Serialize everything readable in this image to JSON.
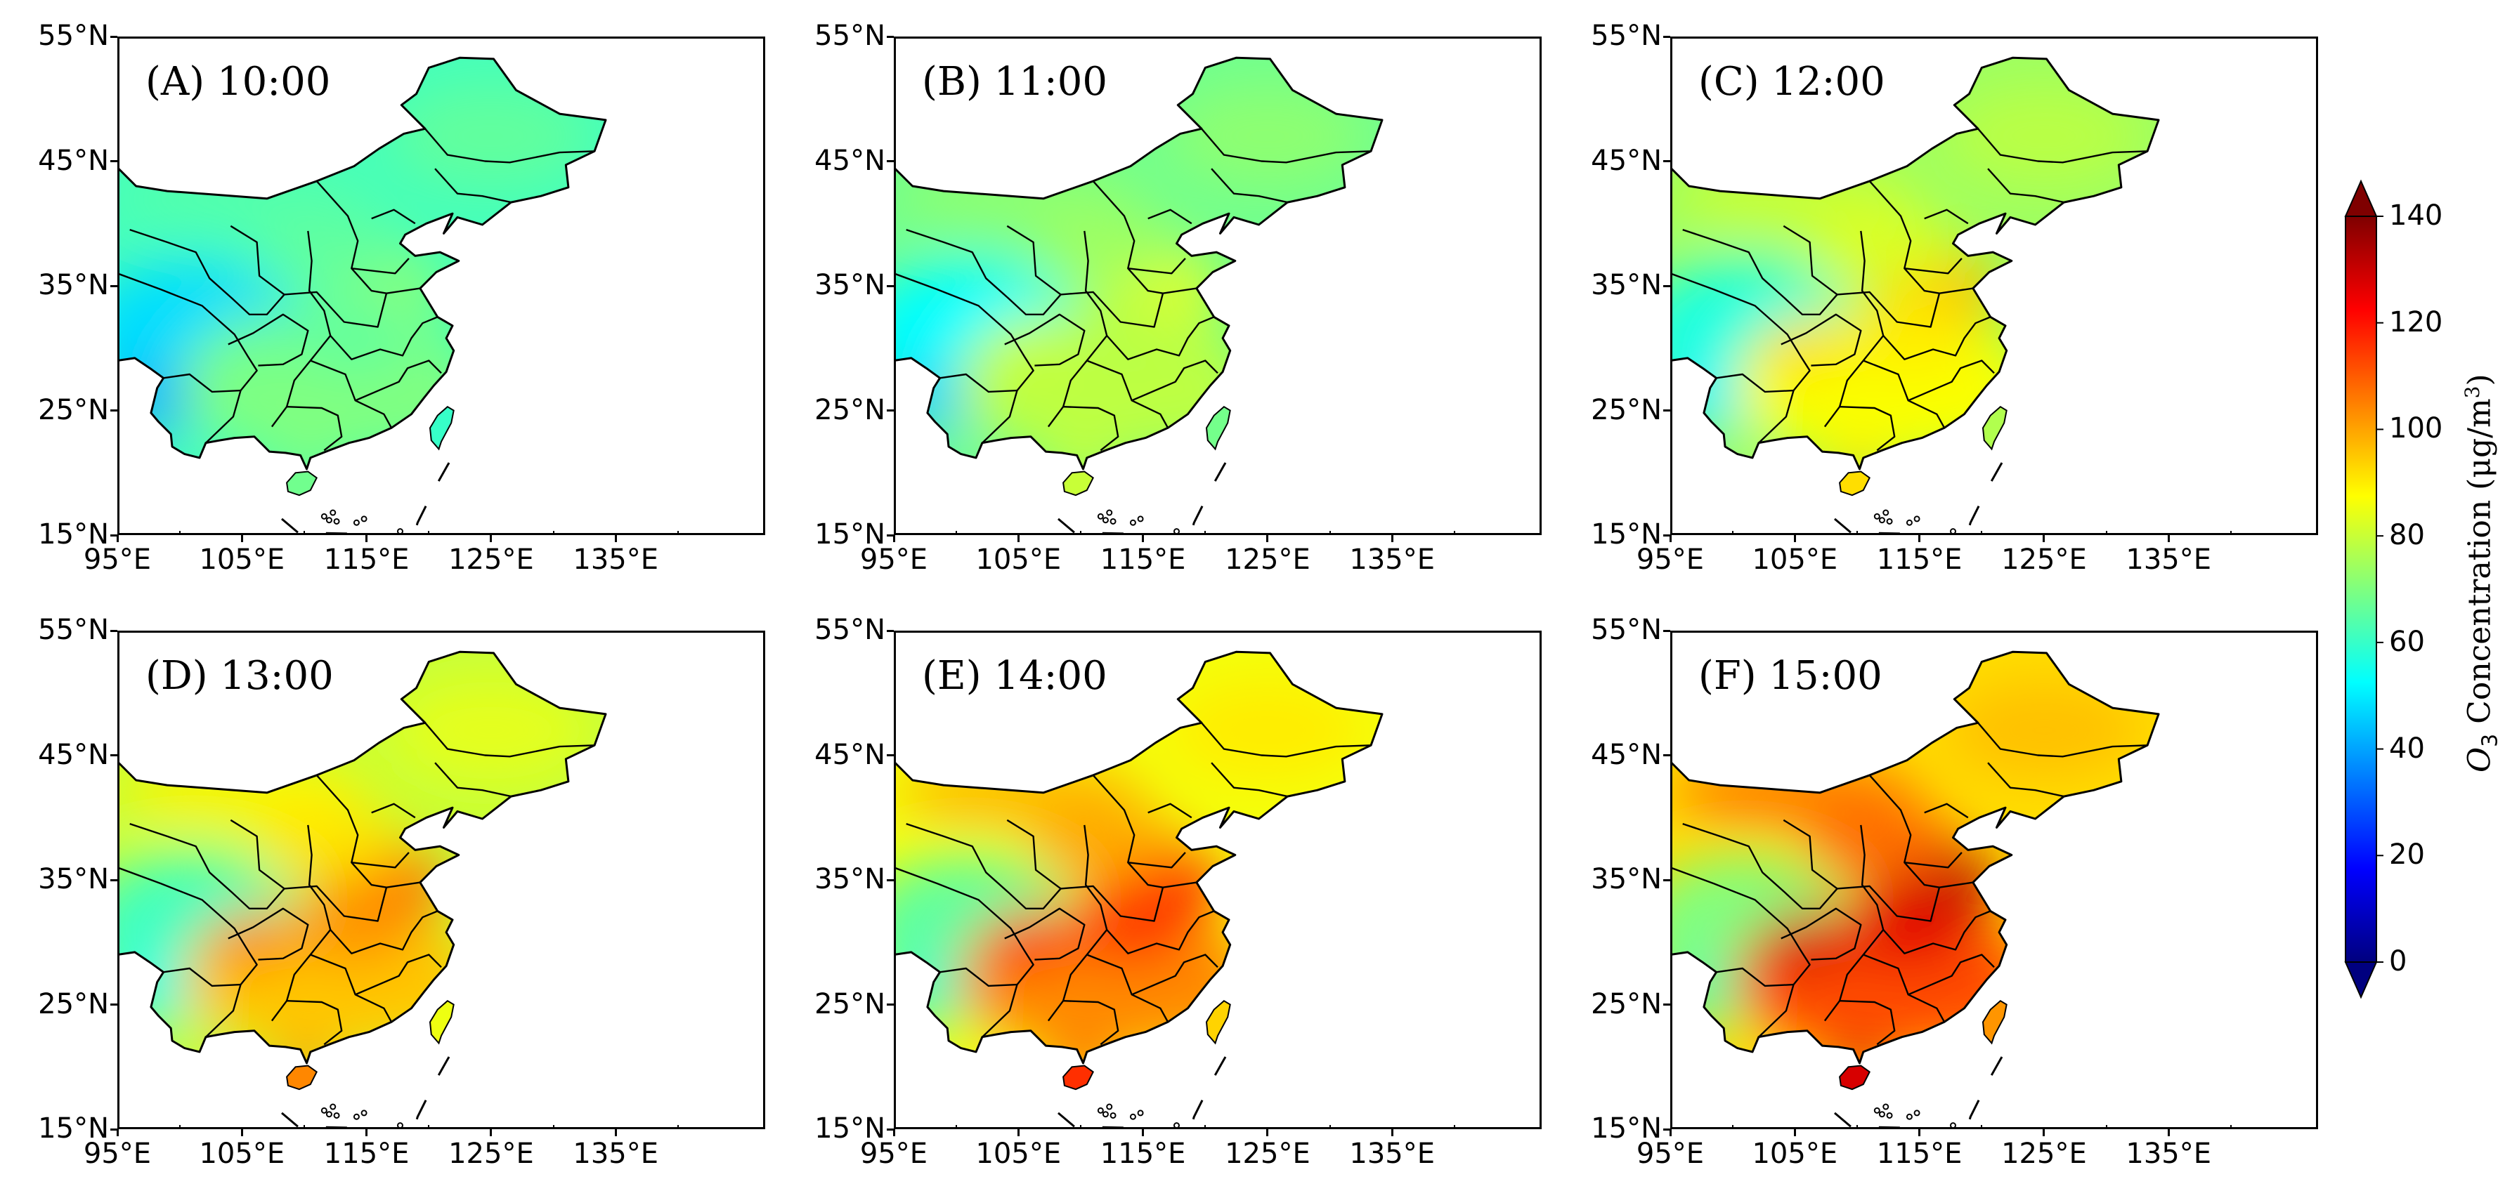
{
  "figure": {
    "panels": [
      {
        "label": "(A) 10:00",
        "time": "10:00",
        "level": 0
      },
      {
        "label": "(B) 11:00",
        "time": "11:00",
        "level": 1
      },
      {
        "label": "(C) 12:00",
        "time": "12:00",
        "level": 2
      },
      {
        "label": "(D) 13:00",
        "time": "13:00",
        "level": 3
      },
      {
        "label": "(E) 14:00",
        "time": "14:00",
        "level": 4
      },
      {
        "label": "(F) 15:00",
        "time": "15:00",
        "level": 5
      }
    ],
    "lat_ticks": [
      "55°N",
      "45°N",
      "35°N",
      "25°N",
      "15°N"
    ],
    "lon_ticks": [
      "95°E",
      "105°E",
      "115°E",
      "125°E",
      "135°E"
    ],
    "map_extent": {
      "lon": [
        95,
        147
      ],
      "lat": [
        15,
        55
      ]
    }
  },
  "colorbar": {
    "title_symbol": "O",
    "title_sub": "3",
    "title_text": " Concentration (μg/m",
    "title_sup": "3",
    "title_close": ")",
    "ticks": [
      "0",
      "20",
      "40",
      "60",
      "80",
      "100",
      "120",
      "140"
    ],
    "range": [
      0,
      140
    ],
    "colors": [
      "#00007f",
      "#0000ff",
      "#007fff",
      "#00ffff",
      "#7fff7f",
      "#ffff00",
      "#ff7f00",
      "#ff0000",
      "#7f0000"
    ]
  }
}
